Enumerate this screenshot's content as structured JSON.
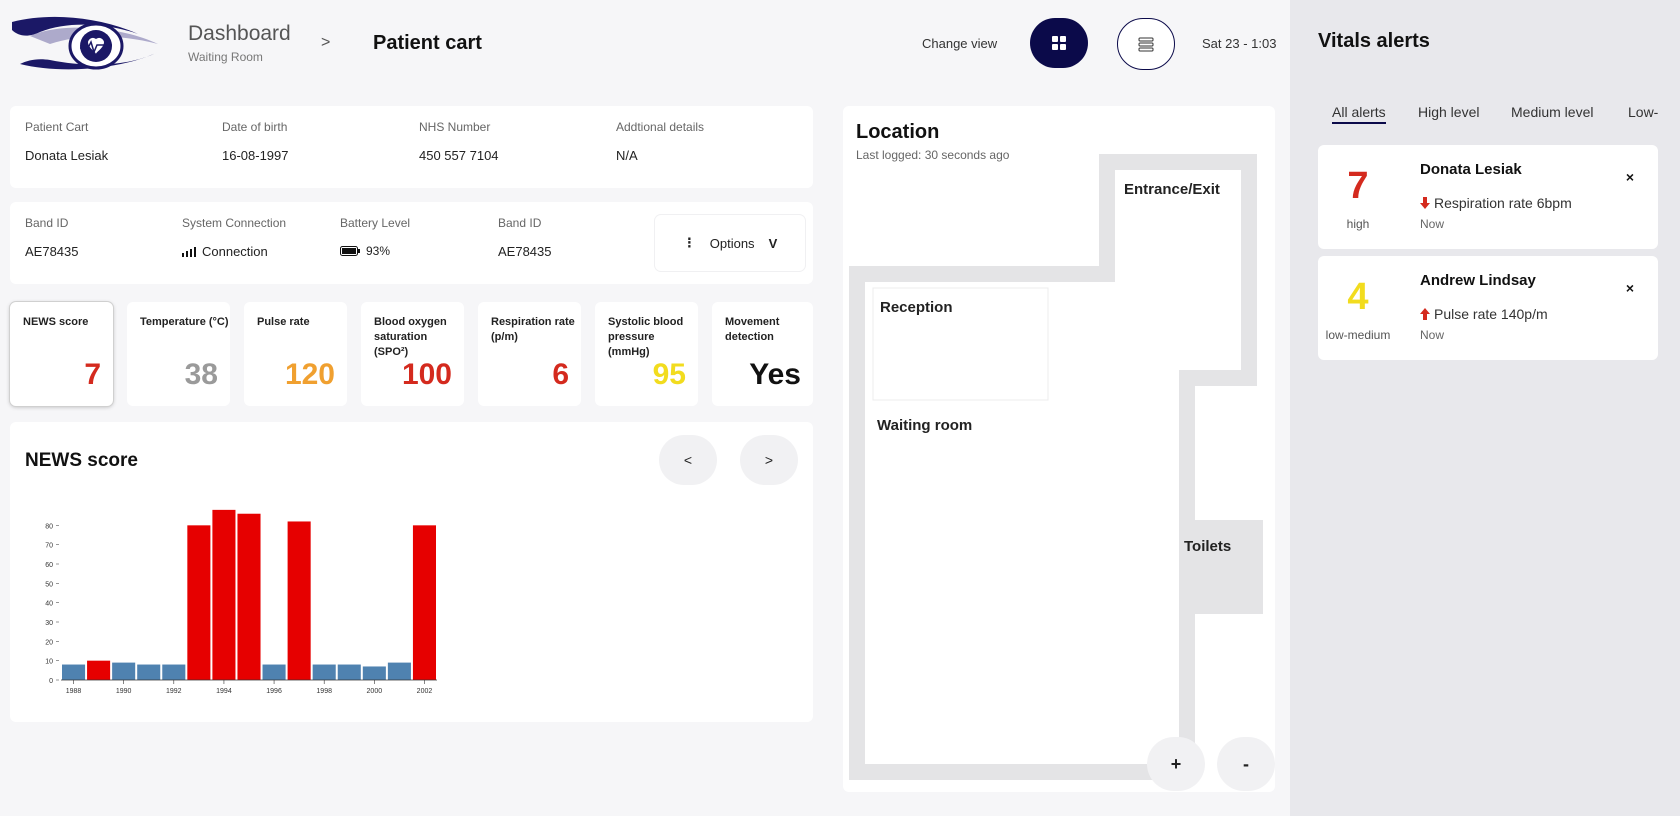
{
  "header": {
    "crumb_title": "Dashboard",
    "crumb_sub": "Waiting Room",
    "crumb_separator": ">",
    "page_title": "Patient cart",
    "change_view": "Change view",
    "datetime": "Sat 23 - 1:03"
  },
  "patient": {
    "cart_label": "Patient Cart",
    "cart_value": "Donata Lesiak",
    "dob_label": "Date of birth",
    "dob_value": "16-08-1997",
    "nhs_label": "NHS Number",
    "nhs_value": "450 557 7104",
    "details_label": "Addtional details",
    "details_value": "N/A"
  },
  "device": {
    "band_label": "Band ID",
    "band_value": "AE78435",
    "connection_label": "System Connection",
    "connection_value": "Connection",
    "battery_label": "Battery Level",
    "battery_value": "93%",
    "band2_label": "Band ID",
    "band2_value": "AE78435",
    "options_label": "Options",
    "options_chevron": "V"
  },
  "metrics": [
    {
      "label": "NEWS score",
      "value": "7",
      "color": "#d42a1e"
    },
    {
      "label": "Temperature (°C)",
      "value": "38",
      "color": "#9a9a9a"
    },
    {
      "label": "Pulse rate",
      "value": "120",
      "color": "#f0a030"
    },
    {
      "label": "Blood oxygen saturation (SPO²)",
      "value": "100",
      "color": "#d42a1e"
    },
    {
      "label": "Respiration rate (p/m)",
      "value": "6",
      "color": "#d42a1e"
    },
    {
      "label": "Systolic blood pressure (mmHg)",
      "value": "95",
      "color": "#f2dc1e"
    },
    {
      "label": "Movement detection",
      "value": "Yes",
      "color": "#111111"
    }
  ],
  "chart_section": {
    "title": "NEWS score",
    "prev": "<",
    "next": ">"
  },
  "chart_data": {
    "type": "bar",
    "categories": [
      "1988",
      "1989",
      "1990",
      "1991",
      "1992",
      "1993",
      "1994",
      "1995",
      "1996",
      "1997",
      "1998",
      "1999",
      "2000",
      "2001",
      "2002"
    ],
    "values": [
      8,
      10,
      9,
      8,
      8,
      80,
      88,
      86,
      8,
      82,
      8,
      8,
      7,
      9,
      80
    ],
    "highlight": [
      false,
      true,
      false,
      false,
      false,
      true,
      true,
      true,
      false,
      true,
      false,
      false,
      false,
      false,
      true
    ],
    "colors": {
      "normal": "#4f82b0",
      "high": "#e60000"
    },
    "x_ticks": [
      "1988",
      "1990",
      "1992",
      "1994",
      "1996",
      "1998",
      "2000",
      "2002"
    ],
    "y_ticks": [
      "0",
      "10",
      "20",
      "30",
      "40",
      "50",
      "60",
      "70",
      "80"
    ],
    "ylim": [
      0,
      90
    ],
    "title": "",
    "xlabel": "",
    "ylabel": ""
  },
  "location": {
    "title": "Location",
    "last_logged": "Last logged: 30 seconds ago",
    "rooms": {
      "entrance": "Entrance/Exit",
      "reception": "Reception",
      "waiting": "Waiting room",
      "toilets": "Toilets"
    },
    "zoom_in": "+",
    "zoom_out": "-"
  },
  "alerts": {
    "title": "Vitals alerts",
    "tabs": [
      "All alerts",
      "High level",
      "Medium level",
      "Low-"
    ],
    "items": [
      {
        "score": "7",
        "level": "high",
        "name": "Donata Lesiak",
        "message": "Respiration rate 6bpm",
        "time": "Now",
        "close": "×",
        "color": "#d42a1e",
        "arrow": "down"
      },
      {
        "score": "4",
        "level": "low-medium",
        "name": "Andrew Lindsay",
        "message": "Pulse rate 140p/m",
        "time": "Now",
        "close": "×",
        "color": "#f2dc1e",
        "arrow": "up"
      }
    ]
  }
}
